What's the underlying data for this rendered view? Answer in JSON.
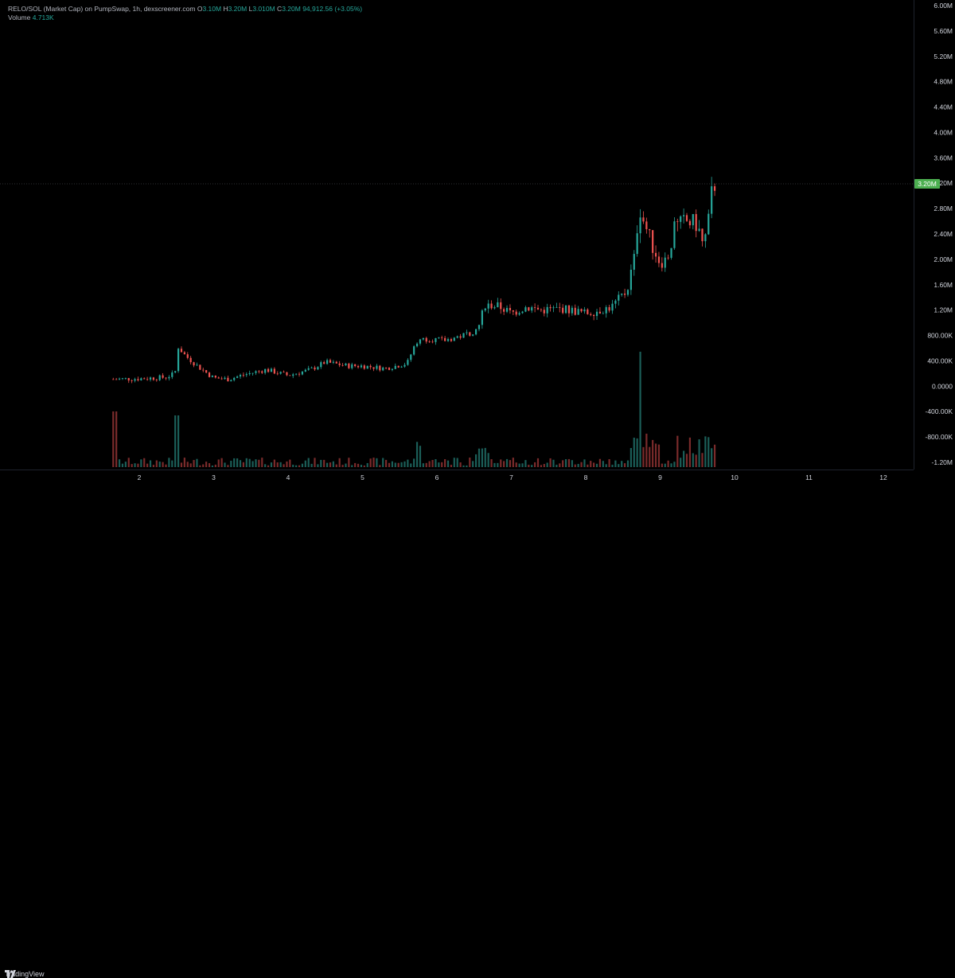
{
  "header": {
    "symbol": "RELO/SOL (Market Cap) on PumpSwap, 1h, dexscreener.com",
    "o_label": "O",
    "o_value": "3.10M",
    "h_label": "H",
    "h_value": "3.20M",
    "l_label": "L",
    "l_value": "3.010M",
    "c_label": "C",
    "c_value": "3.20M",
    "change": "94,912.56 (+3.05%)",
    "volume_label": "Volume",
    "volume_value": "4.713K"
  },
  "last_price_badge": "3.20M",
  "footer": {
    "brand": "TradingView"
  },
  "colors": {
    "up": "#26a69a",
    "down": "#ef5350",
    "badge": "#4caf50",
    "background": "#000000"
  },
  "chart_data": {
    "type": "candlestick",
    "price_axis_labels": [
      "6.00M",
      "5.60M",
      "5.20M",
      "4.80M",
      "4.40M",
      "4.00M",
      "3.60M",
      "3.20M",
      "2.80M",
      "2.40M",
      "2.00M",
      "1.60M",
      "1.20M",
      "800.00K",
      "400.00K",
      "0.0000",
      "-400.00K",
      "-800.00K",
      "-1.20M"
    ],
    "time_axis_labels": [
      "2",
      "3",
      "4",
      "5",
      "6",
      "7",
      "8",
      "9",
      "10",
      "11",
      "12"
    ],
    "ylim": [
      -1200000,
      6000000
    ],
    "grid": false,
    "last_price": 3200000,
    "series": [
      {
        "name": "Market Cap (OHLC, hourly)",
        "summary_points": [
          {
            "t": "day 2",
            "close": 120000
          },
          {
            "t": "day 2.5",
            "close": 650000
          },
          {
            "t": "day 3",
            "close": 130000
          },
          {
            "t": "day 4",
            "close": 250000
          },
          {
            "t": "day 5",
            "close": 330000
          },
          {
            "t": "day 5.7",
            "close": 780000
          },
          {
            "t": "day 6.6",
            "close": 1350000
          },
          {
            "t": "day 7",
            "close": 1150000
          },
          {
            "t": "day 8",
            "close": 1180000
          },
          {
            "t": "day 8.7",
            "close": 2800000
          },
          {
            "t": "day 9",
            "close": 1950000
          },
          {
            "t": "day 9.5",
            "close": 2550000
          },
          {
            "t": "day 9.7",
            "close": 3200000
          }
        ]
      },
      {
        "name": "Volume",
        "peak_day": "8.7"
      }
    ]
  }
}
